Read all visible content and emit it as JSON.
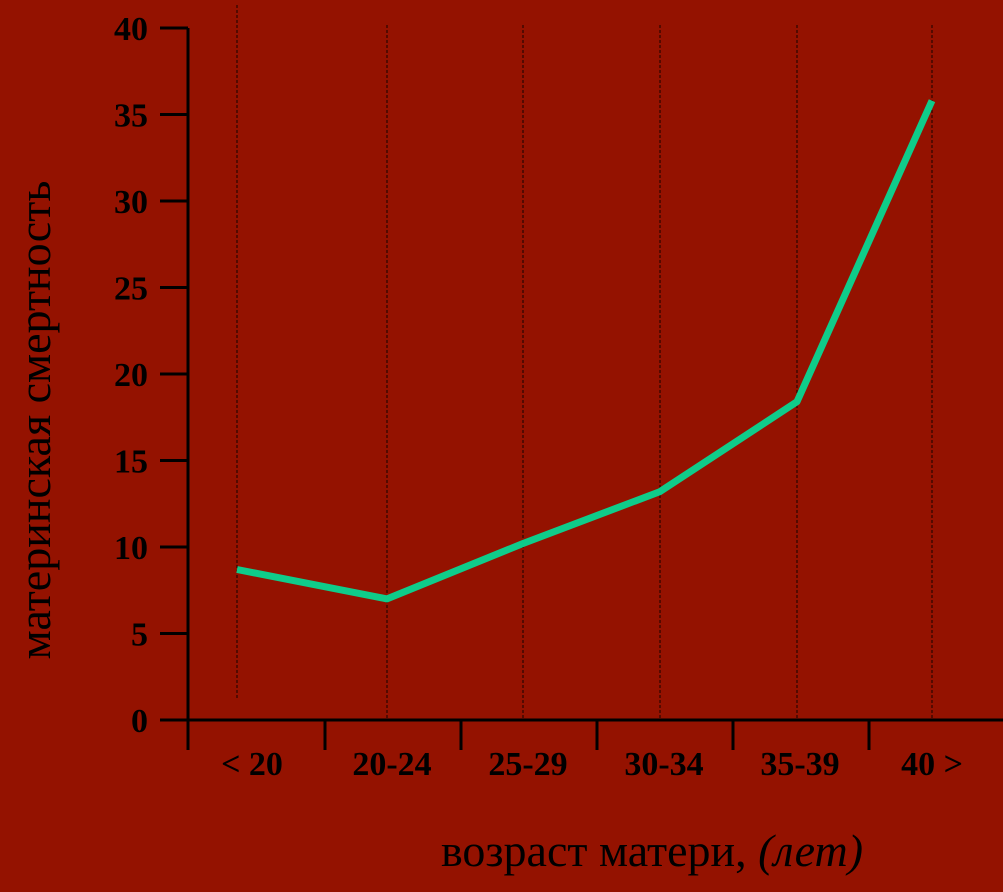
{
  "chart_data": {
    "type": "line",
    "categories": [
      "< 20",
      "20-24",
      "25-29",
      "30-34",
      "35-39",
      "40 >"
    ],
    "series": [
      {
        "values": [
          8.7,
          7.0,
          10.2,
          13.2,
          18.4,
          35.8
        ]
      }
    ],
    "y_ticks": [
      "0",
      "5",
      "10",
      "15",
      "20",
      "25",
      "30",
      "35",
      "40"
    ],
    "ylim": [
      0,
      40
    ],
    "ylabel": "материнская смертность",
    "xlabel_main": "возраст матери, ",
    "xlabel_unit": "(лет)",
    "grid": "vertical dashed lines at categories",
    "colors": {
      "background": "#941200",
      "line": "#0fcc8a",
      "axis": "#000000",
      "text": "#000000"
    }
  }
}
